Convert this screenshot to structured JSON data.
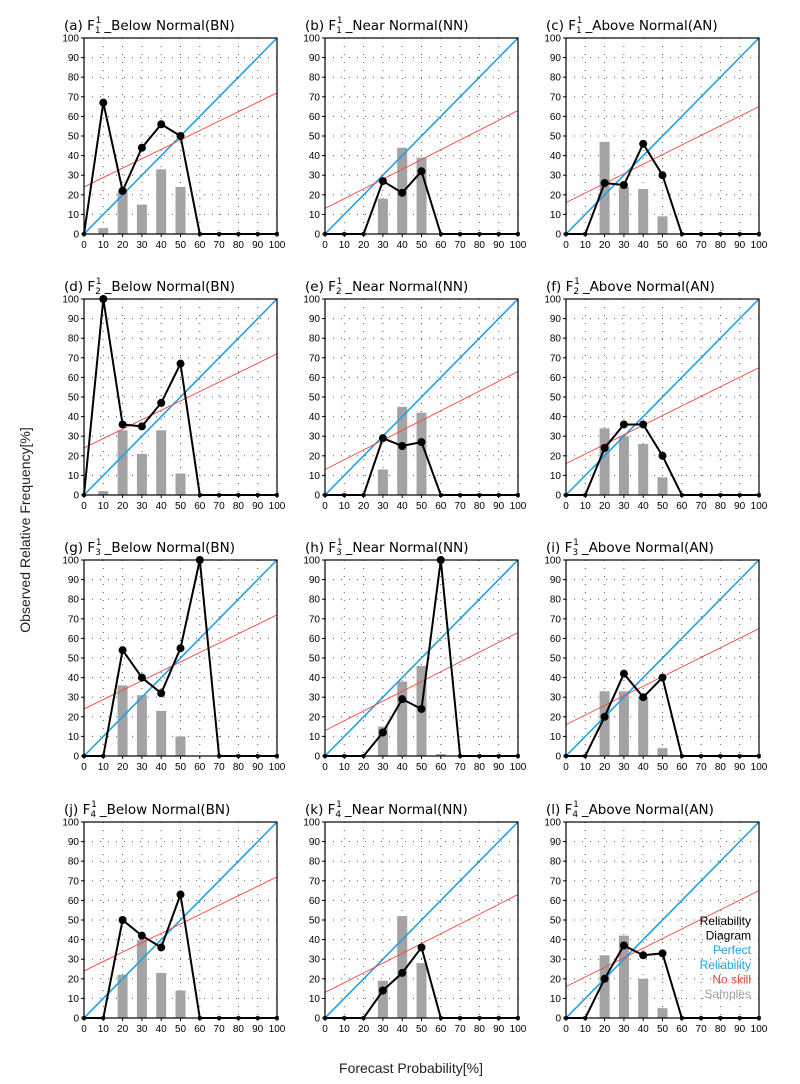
{
  "figure": {
    "ylabel": "Observed Relative Frequency[%]",
    "xlabel": "Forecast Probability[%]"
  },
  "legend": {
    "items": [
      {
        "text": "Reliability",
        "color": "#000000"
      },
      {
        "text": "Diagram",
        "color": "#000000"
      },
      {
        "text": "Perfect",
        "color": "#1ea0e6"
      },
      {
        "text": "Reliability",
        "color": "#1ea0e6"
      },
      {
        "text": "No skill",
        "color": "#ff4040"
      },
      {
        "text": "Samples",
        "color": "#a0a0a0"
      }
    ]
  },
  "chart_data": [
    {
      "type": "reliability",
      "panel_label": "(a)",
      "forecast": "F",
      "sub": "1",
      "sup": "1",
      "category": "_Below Normal(BN)",
      "xticks": [
        0,
        10,
        20,
        30,
        40,
        50,
        60,
        70,
        80,
        90,
        100
      ],
      "yticks": [
        0,
        10,
        20,
        30,
        40,
        50,
        60,
        70,
        80,
        90,
        100
      ],
      "xlim": [
        0,
        100
      ],
      "ylim": [
        0,
        100
      ],
      "reliability_x": [
        0,
        10,
        20,
        30,
        40,
        50,
        60,
        70,
        80,
        90,
        100
      ],
      "reliability_y": [
        0,
        67,
        22,
        44,
        56,
        50,
        0,
        0,
        0,
        0,
        0
      ],
      "samples_x": [
        10,
        20,
        30,
        40,
        50
      ],
      "samples_pct": [
        3,
        22,
        15,
        33,
        24
      ],
      "no_skill_y0": 24,
      "no_skill_y100": 72
    },
    {
      "type": "reliability",
      "panel_label": "(b)",
      "forecast": "F",
      "sub": "1",
      "sup": "1",
      "category": "_Near Normal(NN)",
      "xticks": [
        0,
        10,
        20,
        30,
        40,
        50,
        60,
        70,
        80,
        90,
        100
      ],
      "yticks": [
        0,
        10,
        20,
        30,
        40,
        50,
        60,
        70,
        80,
        90,
        100
      ],
      "xlim": [
        0,
        100
      ],
      "ylim": [
        0,
        100
      ],
      "reliability_x": [
        0,
        10,
        20,
        30,
        40,
        50,
        60,
        70,
        80,
        90,
        100
      ],
      "reliability_y": [
        0,
        0,
        0,
        27,
        21,
        32,
        0,
        0,
        0,
        0,
        0
      ],
      "samples_x": [
        30,
        40,
        50
      ],
      "samples_pct": [
        18,
        44,
        39
      ],
      "no_skill_y0": 13,
      "no_skill_y100": 63
    },
    {
      "type": "reliability",
      "panel_label": "(c)",
      "forecast": "F",
      "sub": "1",
      "sup": "1",
      "category": "_Above Normal(AN)",
      "xticks": [
        0,
        10,
        20,
        30,
        40,
        50,
        60,
        70,
        80,
        90,
        100
      ],
      "yticks": [
        0,
        10,
        20,
        30,
        40,
        50,
        60,
        70,
        80,
        90,
        100
      ],
      "xlim": [
        0,
        100
      ],
      "ylim": [
        0,
        100
      ],
      "reliability_x": [
        0,
        10,
        20,
        30,
        40,
        50,
        60,
        70,
        80,
        90,
        100
      ],
      "reliability_y": [
        0,
        0,
        26,
        25,
        46,
        30,
        0,
        0,
        0,
        0,
        0
      ],
      "samples_x": [
        20,
        30,
        40,
        50
      ],
      "samples_pct": [
        47,
        24,
        23,
        9
      ],
      "no_skill_y0": 16,
      "no_skill_y100": 65
    },
    {
      "type": "reliability",
      "panel_label": "(d)",
      "forecast": "F",
      "sub": "2",
      "sup": "1",
      "category": "_Below Normal(BN)",
      "xticks": [
        0,
        10,
        20,
        30,
        40,
        50,
        60,
        70,
        80,
        90,
        100
      ],
      "yticks": [
        0,
        10,
        20,
        30,
        40,
        50,
        60,
        70,
        80,
        90,
        100
      ],
      "xlim": [
        0,
        100
      ],
      "ylim": [
        0,
        100
      ],
      "reliability_x": [
        0,
        10,
        20,
        30,
        40,
        50,
        60,
        70,
        80,
        90,
        100
      ],
      "reliability_y": [
        0,
        100,
        36,
        35,
        47,
        67,
        0,
        0,
        0,
        0,
        0
      ],
      "samples_x": [
        10,
        20,
        30,
        40,
        50
      ],
      "samples_pct": [
        2,
        33,
        21,
        33,
        11
      ],
      "no_skill_y0": 24,
      "no_skill_y100": 72
    },
    {
      "type": "reliability",
      "panel_label": "(e)",
      "forecast": "F",
      "sub": "2",
      "sup": "1",
      "category": "_Near Normal(NN)",
      "xticks": [
        0,
        10,
        20,
        30,
        40,
        50,
        60,
        70,
        80,
        90,
        100
      ],
      "yticks": [
        0,
        10,
        20,
        30,
        40,
        50,
        60,
        70,
        80,
        90,
        100
      ],
      "xlim": [
        0,
        100
      ],
      "ylim": [
        0,
        100
      ],
      "reliability_x": [
        0,
        10,
        20,
        30,
        40,
        50,
        60,
        70,
        80,
        90,
        100
      ],
      "reliability_y": [
        0,
        0,
        0,
        29,
        25,
        27,
        0,
        0,
        0,
        0,
        0
      ],
      "samples_x": [
        30,
        40,
        50
      ],
      "samples_pct": [
        13,
        45,
        42
      ],
      "no_skill_y0": 13,
      "no_skill_y100": 63
    },
    {
      "type": "reliability",
      "panel_label": "(f)",
      "forecast": "F",
      "sub": "2",
      "sup": "1",
      "category": "_Above Normal(AN)",
      "xticks": [
        0,
        10,
        20,
        30,
        40,
        50,
        60,
        70,
        80,
        90,
        100
      ],
      "yticks": [
        0,
        10,
        20,
        30,
        40,
        50,
        60,
        70,
        80,
        90,
        100
      ],
      "xlim": [
        0,
        100
      ],
      "ylim": [
        0,
        100
      ],
      "reliability_x": [
        0,
        10,
        20,
        30,
        40,
        50,
        60,
        70,
        80,
        90,
        100
      ],
      "reliability_y": [
        0,
        0,
        24,
        36,
        36,
        20,
        0,
        0,
        0,
        0,
        0
      ],
      "samples_x": [
        20,
        30,
        40,
        50
      ],
      "samples_pct": [
        34,
        30,
        26,
        9
      ],
      "no_skill_y0": 16,
      "no_skill_y100": 65
    },
    {
      "type": "reliability",
      "panel_label": "(g)",
      "forecast": "F",
      "sub": "3",
      "sup": "1",
      "category": "_Below Normal(BN)",
      "xticks": [
        0,
        10,
        20,
        30,
        40,
        50,
        60,
        70,
        80,
        90,
        100
      ],
      "yticks": [
        0,
        10,
        20,
        30,
        40,
        50,
        60,
        70,
        80,
        90,
        100
      ],
      "xlim": [
        0,
        100
      ],
      "ylim": [
        0,
        100
      ],
      "reliability_x": [
        0,
        10,
        20,
        30,
        40,
        50,
        60,
        70,
        80,
        90,
        100
      ],
      "reliability_y": [
        0,
        0,
        54,
        40,
        32,
        55,
        100,
        0,
        0,
        0,
        0
      ],
      "samples_x": [
        20,
        30,
        40,
        50
      ],
      "samples_pct": [
        36,
        31,
        23,
        10
      ],
      "no_skill_y0": 24,
      "no_skill_y100": 72
    },
    {
      "type": "reliability",
      "panel_label": "(h)",
      "forecast": "F",
      "sub": "3",
      "sup": "1",
      "category": "_Near Normal(NN)",
      "xticks": [
        0,
        10,
        20,
        30,
        40,
        50,
        60,
        70,
        80,
        90,
        100
      ],
      "yticks": [
        0,
        10,
        20,
        30,
        40,
        50,
        60,
        70,
        80,
        90,
        100
      ],
      "xlim": [
        0,
        100
      ],
      "ylim": [
        0,
        100
      ],
      "reliability_x": [
        0,
        10,
        20,
        30,
        40,
        50,
        60,
        70,
        80,
        90,
        100
      ],
      "reliability_y": [
        0,
        0,
        0,
        12,
        29,
        24,
        100,
        0,
        0,
        0,
        0
      ],
      "samples_x": [
        30,
        40,
        50,
        60
      ],
      "samples_pct": [
        15,
        38,
        46,
        1
      ],
      "no_skill_y0": 13,
      "no_skill_y100": 63
    },
    {
      "type": "reliability",
      "panel_label": "(i)",
      "forecast": "F",
      "sub": "3",
      "sup": "1",
      "category": "_Above Normal(AN)",
      "xticks": [
        0,
        10,
        20,
        30,
        40,
        50,
        60,
        70,
        80,
        90,
        100
      ],
      "yticks": [
        0,
        10,
        20,
        30,
        40,
        50,
        60,
        70,
        80,
        90,
        100
      ],
      "xlim": [
        0,
        100
      ],
      "ylim": [
        0,
        100
      ],
      "reliability_x": [
        0,
        10,
        20,
        30,
        40,
        50,
        60,
        70,
        80,
        90,
        100
      ],
      "reliability_y": [
        0,
        0,
        20,
        42,
        30,
        40,
        0,
        0,
        0,
        0,
        0
      ],
      "samples_x": [
        20,
        30,
        40,
        50
      ],
      "samples_pct": [
        33,
        33,
        30,
        4
      ],
      "no_skill_y0": 16,
      "no_skill_y100": 65
    },
    {
      "type": "reliability",
      "panel_label": "(j)",
      "forecast": "F",
      "sub": "4",
      "sup": "1",
      "category": "_Below Normal(BN)",
      "xticks": [
        0,
        10,
        20,
        30,
        40,
        50,
        60,
        70,
        80,
        90,
        100
      ],
      "yticks": [
        0,
        10,
        20,
        30,
        40,
        50,
        60,
        70,
        80,
        90,
        100
      ],
      "xlim": [
        0,
        100
      ],
      "ylim": [
        0,
        100
      ],
      "reliability_x": [
        0,
        10,
        20,
        30,
        40,
        50,
        60,
        70,
        80,
        90,
        100
      ],
      "reliability_y": [
        0,
        0,
        50,
        42,
        36,
        63,
        0,
        0,
        0,
        0,
        0
      ],
      "samples_x": [
        20,
        30,
        40,
        50
      ],
      "samples_pct": [
        22,
        40,
        23,
        14
      ],
      "no_skill_y0": 24,
      "no_skill_y100": 72
    },
    {
      "type": "reliability",
      "panel_label": "(k)",
      "forecast": "F",
      "sub": "4",
      "sup": "1",
      "category": "_Near Normal(NN)",
      "xticks": [
        0,
        10,
        20,
        30,
        40,
        50,
        60,
        70,
        80,
        90,
        100
      ],
      "yticks": [
        0,
        10,
        20,
        30,
        40,
        50,
        60,
        70,
        80,
        90,
        100
      ],
      "xlim": [
        0,
        100
      ],
      "ylim": [
        0,
        100
      ],
      "reliability_x": [
        0,
        10,
        20,
        30,
        40,
        50,
        60,
        70,
        80,
        90,
        100
      ],
      "reliability_y": [
        0,
        0,
        0,
        14,
        23,
        36,
        0,
        0,
        0,
        0,
        0
      ],
      "samples_x": [
        30,
        40,
        50
      ],
      "samples_pct": [
        19,
        52,
        28
      ],
      "no_skill_y0": 13,
      "no_skill_y100": 63
    },
    {
      "type": "reliability",
      "panel_label": "(l)",
      "forecast": "F",
      "sub": "4",
      "sup": "1",
      "category": "_Above Normal(AN)",
      "xticks": [
        0,
        10,
        20,
        30,
        40,
        50,
        60,
        70,
        80,
        90,
        100
      ],
      "yticks": [
        0,
        10,
        20,
        30,
        40,
        50,
        60,
        70,
        80,
        90,
        100
      ],
      "xlim": [
        0,
        100
      ],
      "ylim": [
        0,
        100
      ],
      "reliability_x": [
        0,
        10,
        20,
        30,
        40,
        50,
        60,
        70,
        80,
        90,
        100
      ],
      "reliability_y": [
        0,
        0,
        20,
        37,
        32,
        33,
        0,
        0,
        0,
        0,
        0
      ],
      "samples_x": [
        20,
        30,
        40,
        50
      ],
      "samples_pct": [
        32,
        42,
        20,
        5
      ],
      "no_skill_y0": 16,
      "no_skill_y100": 65,
      "show_legend": true
    }
  ]
}
